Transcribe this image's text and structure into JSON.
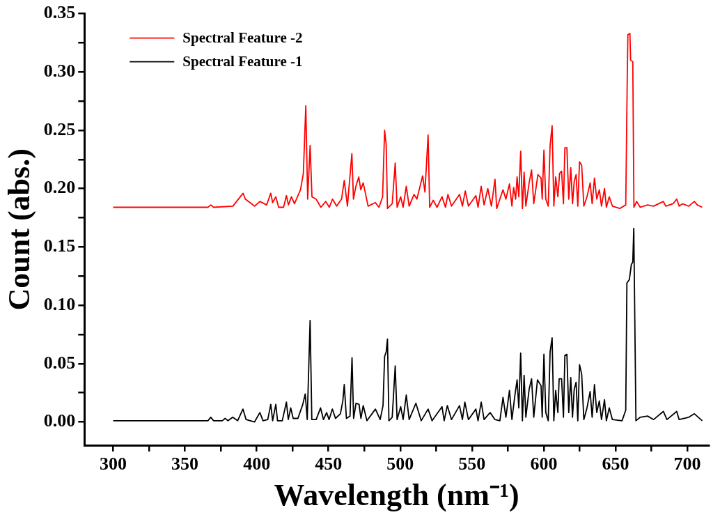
{
  "chart_data": {
    "type": "line",
    "xlabel": "Wavelength (nm⁻¹)",
    "ylabel": "Count (abs.)",
    "legend": "top left",
    "grid": false,
    "xlim": [
      280,
      715
    ],
    "ylim": [
      -0.02,
      0.35
    ],
    "xticks": [
      300,
      {
        "value": 325,
        "label": null
      },
      350,
      {
        "value": 375,
        "label": null
      },
      400,
      {
        "value": 425,
        "label": null
      },
      450,
      {
        "value": 475,
        "label": null
      },
      500,
      {
        "value": 525,
        "label": null
      },
      550,
      {
        "value": 575,
        "label": null
      },
      600,
      {
        "value": 625,
        "label": null
      },
      650,
      {
        "value": 675,
        "label": null
      },
      700
    ],
    "yticks": [
      {
        "value": 0,
        "label": "0.00"
      },
      {
        "value": 0.025,
        "label": null
      },
      0.05,
      {
        "value": 0.075,
        "label": null
      },
      {
        "value": 0.1,
        "label": "0.10"
      },
      {
        "value": 0.125,
        "label": null
      },
      0.15,
      {
        "value": 0.175,
        "label": null
      },
      {
        "value": 0.2,
        "label": "0.20"
      },
      {
        "value": 0.225,
        "label": null
      },
      0.25,
      {
        "value": 0.275,
        "label": null
      },
      {
        "value": 0.3,
        "label": "0.30"
      },
      {
        "value": 0.325,
        "label": null
      },
      0.35
    ],
    "series": [
      {
        "name": "Spectral Feature -2",
        "color": "#ff0000",
        "x": [
          300,
          330,
          360,
          366,
          368,
          370,
          383.4,
          390.5,
          392.1,
          398.5,
          402.2,
          406.9,
          409.8,
          411.1,
          413.3,
          415.3,
          418.7,
          420.7,
          422.1,
          424.2,
          426.3,
          430.5,
          432.5,
          434.2,
          435.5,
          437.2,
          438.5,
          441.4,
          444.7,
          448.1,
          450.6,
          452.8,
          455.7,
          459.1,
          461.0,
          463.2,
          466.3,
          467.4,
          469.1,
          471.1,
          472.5,
          474.2,
          477.6,
          482.7,
          485.2,
          487.7,
          489.1,
          490.2,
          491.1,
          494.4,
          496.5,
          497.8,
          500.3,
          502.0,
          504.2,
          506.2,
          509.6,
          511.6,
          515.6,
          517.2,
          519.4,
          520.5,
          523.0,
          525.6,
          529.1,
          531.5,
          533.2,
          535.7,
          541.3,
          543.3,
          545.3,
          547.5,
          552.7,
          554.2,
          556.4,
          558.4,
          561.0,
          563.5,
          566.0,
          567.2,
          571.6,
          573.6,
          576.1,
          577.8,
          579.0,
          580.4,
          581.4,
          582.6,
          583.9,
          585.1,
          586.3,
          587.5,
          589.8,
          591.5,
          593.0,
          595.9,
          598.1,
          598.9,
          600.1,
          601.4,
          603.1,
          604.4,
          605.8,
          607.0,
          608.3,
          609.8,
          611.0,
          612.4,
          613.7,
          614.7,
          616.1,
          617.4,
          618.8,
          620.0,
          621.2,
          622.5,
          623.7,
          624.9,
          626.4,
          627.9,
          630.1,
          632.3,
          633.7,
          635.3,
          636.9,
          638.7,
          640.2,
          642.3,
          643.6,
          645.6,
          647.8,
          652.9,
          657.1,
          658.2,
          658.6,
          660.0,
          660.5,
          662.0,
          662.8,
          664.7,
          667.2,
          672.3,
          676.5,
          683.3,
          685.0,
          690.0,
          692.6,
          694.3,
          696.8,
          701.0,
          704.9,
          707.0,
          710.4
        ],
        "values": [
          0.184,
          0.184,
          0.184,
          0.184,
          0.186,
          0.184,
          0.185,
          0.196,
          0.191,
          0.185,
          0.189,
          0.186,
          0.196,
          0.188,
          0.193,
          0.184,
          0.184,
          0.194,
          0.186,
          0.193,
          0.187,
          0.199,
          0.213,
          0.271,
          0.191,
          0.237,
          0.193,
          0.191,
          0.184,
          0.189,
          0.184,
          0.191,
          0.185,
          0.191,
          0.207,
          0.185,
          0.23,
          0.191,
          0.202,
          0.21,
          0.199,
          0.205,
          0.185,
          0.188,
          0.184,
          0.193,
          0.25,
          0.238,
          0.183,
          0.187,
          0.222,
          0.184,
          0.193,
          0.184,
          0.202,
          0.185,
          0.195,
          0.191,
          0.211,
          0.197,
          0.246,
          0.184,
          0.19,
          0.184,
          0.193,
          0.184,
          0.195,
          0.185,
          0.195,
          0.185,
          0.198,
          0.185,
          0.194,
          0.184,
          0.202,
          0.186,
          0.2,
          0.185,
          0.208,
          0.183,
          0.199,
          0.191,
          0.204,
          0.185,
          0.201,
          0.191,
          0.21,
          0.193,
          0.232,
          0.183,
          0.214,
          0.185,
          0.205,
          0.216,
          0.187,
          0.212,
          0.209,
          0.191,
          0.233,
          0.191,
          0.185,
          0.237,
          0.254,
          0.185,
          0.21,
          0.193,
          0.213,
          0.215,
          0.187,
          0.235,
          0.235,
          0.191,
          0.218,
          0.187,
          0.206,
          0.212,
          0.185,
          0.223,
          0.22,
          0.185,
          0.193,
          0.205,
          0.187,
          0.209,
          0.191,
          0.199,
          0.185,
          0.2,
          0.184,
          0.193,
          0.185,
          0.183,
          0.186,
          0.3,
          0.332,
          0.333,
          0.31,
          0.309,
          0.184,
          0.189,
          0.184,
          0.186,
          0.185,
          0.189,
          0.185,
          0.187,
          0.191,
          0.185,
          0.187,
          0.185,
          0.189,
          0.186,
          0.184
        ]
      },
      {
        "name": "Spectral Feature -1",
        "color": "#000000",
        "x": [
          300,
          330,
          360,
          366,
          368,
          370,
          376,
          378,
          380,
          383.3,
          386.7,
          390.4,
          392.6,
          398.5,
          402.2,
          404.4,
          407.7,
          409.8,
          411.1,
          413.3,
          414.5,
          417.8,
          420.7,
          422.0,
          423.7,
          425.4,
          428.7,
          432.1,
          433.8,
          435.2,
          437.2,
          438.4,
          441.4,
          444.5,
          446.5,
          448.7,
          450.4,
          452.7,
          454.9,
          458.3,
          460.0,
          461.0,
          462.5,
          465.0,
          466.4,
          467.5,
          469.2,
          471.3,
          472.6,
          474.2,
          476.8,
          482.7,
          486.0,
          488.0,
          489.1,
          490.2,
          491.1,
          492.1,
          494.4,
          496.5,
          497.8,
          500.3,
          502.0,
          504.2,
          506.2,
          510.9,
          514.6,
          519.4,
          522.2,
          529.1,
          530.6,
          532.8,
          535.7,
          541.3,
          543.3,
          545.0,
          547.5,
          552.7,
          554.2,
          556.4,
          558.4,
          562.6,
          566.0,
          569.4,
          571.6,
          573.6,
          576.1,
          577.8,
          580.0,
          581.4,
          582.6,
          583.9,
          585.1,
          586.3,
          587.5,
          589.8,
          591.5,
          593.0,
          595.6,
          598.1,
          598.9,
          600.1,
          601.4,
          603.1,
          604.4,
          605.8,
          607.0,
          608.3,
          609.8,
          610.7,
          612.4,
          613.7,
          614.7,
          616.1,
          617.4,
          618.8,
          620.0,
          621.2,
          622.5,
          623.7,
          624.9,
          626.4,
          627.9,
          630.1,
          632.3,
          633.7,
          635.3,
          636.9,
          638.7,
          640.2,
          642.3,
          643.6,
          645.6,
          647.8,
          654.5,
          657.1,
          657.9,
          659.6,
          661.0,
          662.0,
          662.7,
          663.4,
          664.2,
          667.2,
          672.3,
          676.5,
          683.3,
          685.8,
          692.6,
          694.3,
          701.0,
          704.9,
          710.4
        ],
        "values": [
          0.001,
          0.001,
          0.001,
          0.001,
          0.004,
          0.001,
          0.001,
          0.003,
          0.001,
          0.004,
          0.001,
          0.011,
          0.002,
          0.0,
          0.008,
          0.001,
          0.002,
          0.015,
          0.001,
          0.015,
          0.001,
          0.001,
          0.017,
          0.002,
          0.012,
          0.003,
          0.003,
          0.015,
          0.024,
          0.002,
          0.087,
          0.002,
          0.002,
          0.012,
          0.002,
          0.008,
          0.002,
          0.011,
          0.003,
          0.007,
          0.018,
          0.032,
          0.003,
          0.005,
          0.055,
          0.003,
          0.016,
          0.015,
          0.003,
          0.014,
          0.001,
          0.011,
          0.002,
          0.014,
          0.056,
          0.06,
          0.071,
          0.001,
          0.004,
          0.048,
          0.002,
          0.013,
          0.002,
          0.023,
          0.002,
          0.016,
          0.001,
          0.011,
          0.001,
          0.013,
          0.001,
          0.014,
          0.002,
          0.014,
          0.002,
          0.017,
          0.002,
          0.011,
          0.001,
          0.017,
          0.002,
          0.008,
          0.002,
          0.001,
          0.021,
          0.004,
          0.027,
          0.002,
          0.024,
          0.036,
          0.012,
          0.059,
          0.001,
          0.04,
          0.004,
          0.028,
          0.037,
          0.004,
          0.036,
          0.031,
          0.004,
          0.058,
          0.008,
          0.001,
          0.06,
          0.072,
          0.001,
          0.027,
          0.008,
          0.037,
          0.037,
          0.004,
          0.057,
          0.058,
          0.008,
          0.038,
          0.004,
          0.028,
          0.034,
          0.001,
          0.049,
          0.041,
          0.002,
          0.012,
          0.026,
          0.004,
          0.032,
          0.008,
          0.018,
          0.002,
          0.019,
          0.001,
          0.012,
          0.002,
          0.001,
          0.01,
          0.119,
          0.122,
          0.135,
          0.137,
          0.166,
          0.089,
          0.001,
          0.004,
          0.005,
          0.002,
          0.009,
          0.002,
          0.009,
          0.002,
          0.004,
          0.007,
          0.001
        ]
      }
    ]
  }
}
